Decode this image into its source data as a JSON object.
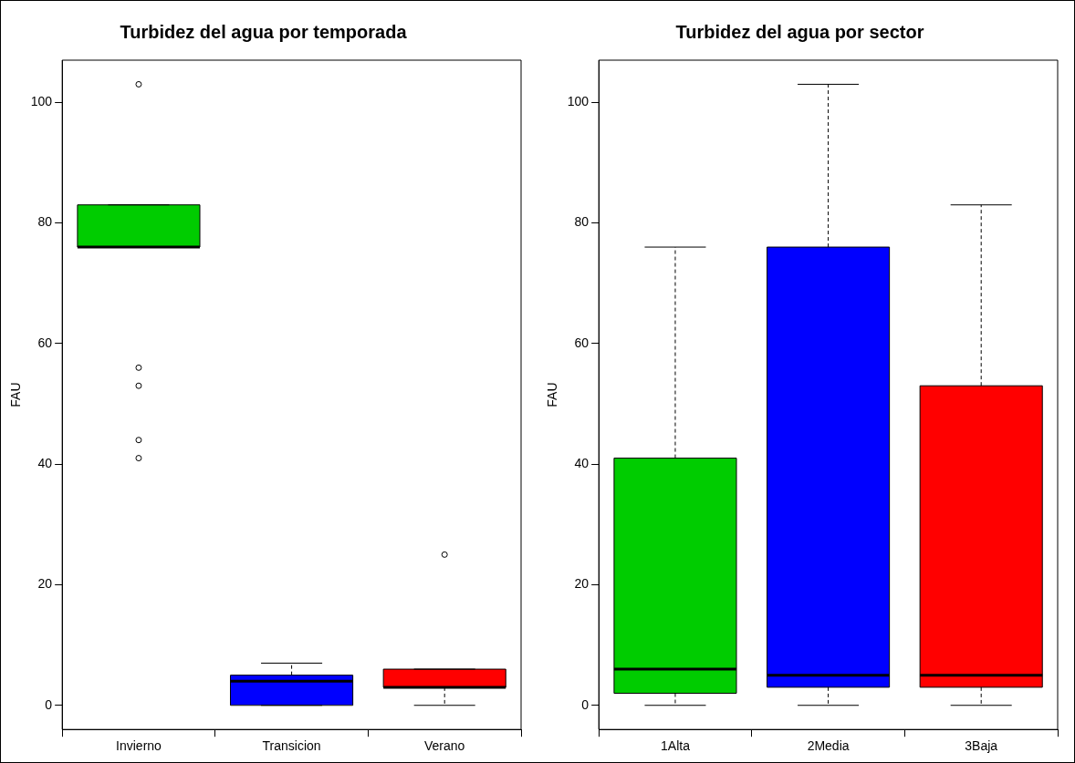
{
  "chart_data": [
    {
      "type": "box",
      "title": "Turbidez del agua por temporada",
      "ylabel": "FAU",
      "categories": [
        "Invierno",
        "Transicion",
        "Verano"
      ],
      "colors": [
        "#00cc00",
        "#0000ff",
        "#ff0000"
      ],
      "ylim": [
        -4,
        107
      ],
      "yticks": [
        0,
        20,
        40,
        60,
        80,
        100
      ],
      "grid": false,
      "boxes": [
        {
          "low": 76,
          "q1": 76,
          "median": 76,
          "q3": 83,
          "high": 83,
          "outliers": [
            103,
            56,
            53,
            44,
            41
          ]
        },
        {
          "low": 0,
          "q1": 0,
          "median": 4,
          "q3": 5,
          "high": 7
        },
        {
          "low": 0,
          "q1": 3,
          "median": 3,
          "q3": 6,
          "high": 6,
          "outliers": [
            25
          ]
        }
      ]
    },
    {
      "type": "box",
      "title": "Turbidez del agua por sector",
      "ylabel": "FAU",
      "categories": [
        "1Alta",
        "2Media",
        "3Baja"
      ],
      "colors": [
        "#00cc00",
        "#0000ff",
        "#ff0000"
      ],
      "ylim": [
        -4,
        107
      ],
      "yticks": [
        0,
        20,
        40,
        60,
        80,
        100
      ],
      "grid": false,
      "boxes": [
        {
          "low": 0,
          "q1": 2,
          "median": 6,
          "q3": 41,
          "high": 76
        },
        {
          "low": 0,
          "q1": 3,
          "median": 5,
          "q3": 76,
          "high": 103
        },
        {
          "low": 0,
          "q1": 3,
          "median": 5,
          "q3": 53,
          "high": 83
        }
      ]
    }
  ]
}
